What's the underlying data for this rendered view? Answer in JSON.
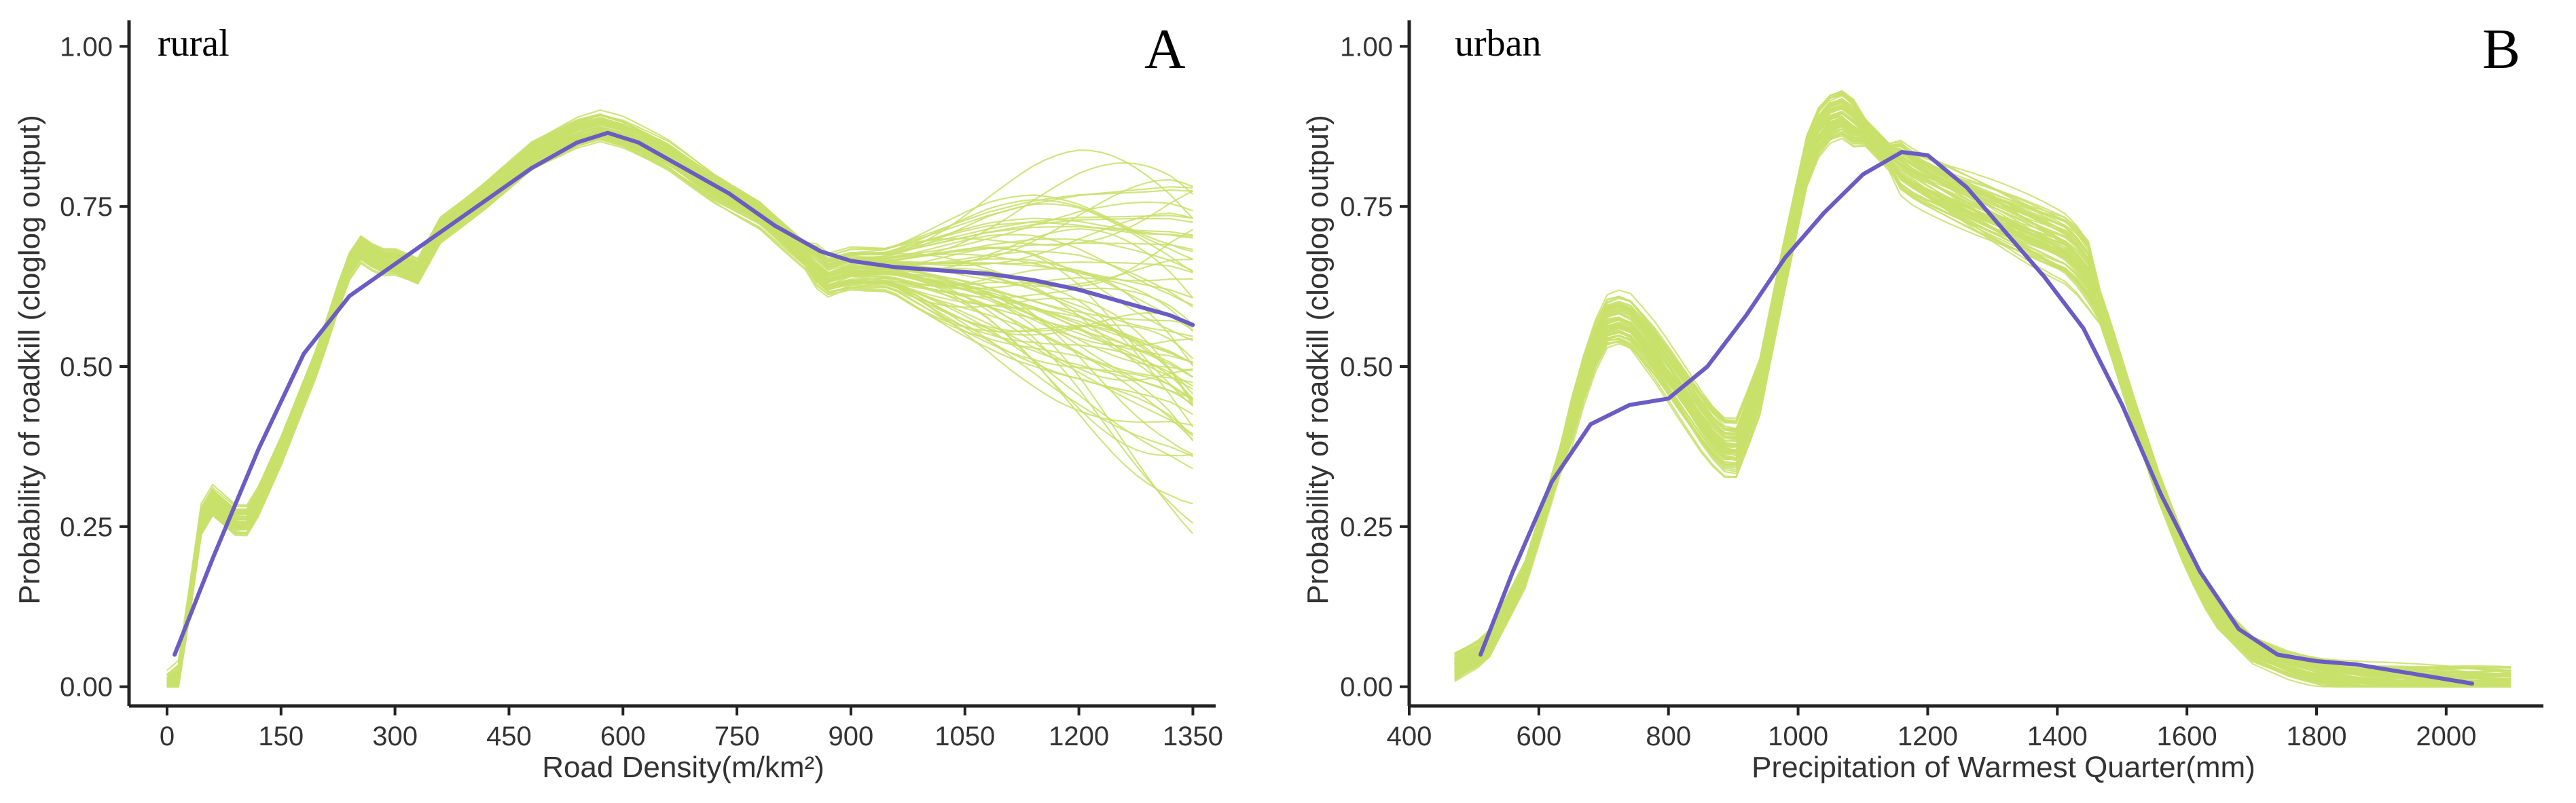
{
  "chart_data": [
    {
      "type": "line",
      "panel_label": "A",
      "subtitle": "rural",
      "xlabel": "Road Density(m/km²)",
      "ylabel": "Probability of roadkill (cloglog output)",
      "xlim": [
        -50,
        1380
      ],
      "ylim": [
        -0.03,
        1.03
      ],
      "x_ticks": [
        "0",
        "150",
        "300",
        "450",
        "600",
        "750",
        "900",
        "1050",
        "1200",
        "1350"
      ],
      "y_ticks": [
        "0.00",
        "0.25",
        "0.50",
        "0.75",
        "1.00"
      ],
      "colors": {
        "replicates": "#c8e06a",
        "mean": "#6a5cc4"
      },
      "series": [
        {
          "name": "mean response",
          "x": [
            10,
            60,
            120,
            180,
            240,
            300,
            360,
            420,
            480,
            540,
            580,
            620,
            680,
            740,
            800,
            860,
            900,
            960,
            1020,
            1080,
            1140,
            1200,
            1260,
            1320,
            1350
          ],
          "y": [
            0.05,
            0.2,
            0.37,
            0.52,
            0.61,
            0.66,
            0.71,
            0.76,
            0.81,
            0.85,
            0.865,
            0.85,
            0.81,
            0.77,
            0.72,
            0.68,
            0.665,
            0.655,
            0.65,
            0.645,
            0.635,
            0.62,
            0.6,
            0.58,
            0.565
          ]
        },
        {
          "name": "replicate template",
          "x": [
            0,
            20,
            40,
            60,
            80,
            100,
            120,
            150,
            180,
            200,
            230,
            250,
            280,
            300,
            330,
            360,
            420,
            480,
            540,
            570,
            600,
            660,
            720,
            780,
            840,
            870,
            900,
            960,
            1020,
            1080,
            1140,
            1200,
            1260,
            1320,
            1350
          ],
          "y": [
            0.0,
            0.02,
            0.25,
            0.29,
            0.27,
            0.25,
            0.29,
            0.37,
            0.46,
            0.52,
            0.63,
            0.69,
            0.665,
            0.665,
            0.65,
            0.715,
            0.77,
            0.83,
            0.865,
            0.875,
            0.865,
            0.83,
            0.78,
            0.74,
            0.675,
            0.645,
            0.655,
            0.655,
            0.65,
            0.645,
            0.635,
            0.62,
            0.6,
            0.58,
            0.565
          ]
        }
      ]
    },
    {
      "type": "line",
      "panel_label": "B",
      "subtitle": "urban",
      "xlabel": "Precipitation of Warmest Quarter(mm)",
      "ylabel": "Probability of roadkill (cloglog output)",
      "xlim": [
        400,
        2150
      ],
      "ylim": [
        -0.03,
        1.03
      ],
      "x_ticks": [
        "400",
        "600",
        "800",
        "1000",
        "1200",
        "1400",
        "1600",
        "1800",
        "2000"
      ],
      "y_ticks": [
        "0.00",
        "0.25",
        "0.50",
        "0.75",
        "1.00"
      ],
      "colors": {
        "replicates": "#c8e06a",
        "mean": "#6a5cc4"
      },
      "series": [
        {
          "name": "mean response",
          "x": [
            510,
            560,
            620,
            680,
            740,
            800,
            860,
            920,
            980,
            1040,
            1100,
            1160,
            1200,
            1260,
            1320,
            1380,
            1440,
            1500,
            1560,
            1620,
            1680,
            1740,
            1800,
            1860,
            1920,
            1980,
            2040
          ],
          "y": [
            0.05,
            0.18,
            0.32,
            0.41,
            0.44,
            0.45,
            0.5,
            0.58,
            0.67,
            0.74,
            0.8,
            0.835,
            0.83,
            0.78,
            0.71,
            0.64,
            0.56,
            0.44,
            0.3,
            0.18,
            0.09,
            0.05,
            0.04,
            0.035,
            0.025,
            0.015,
            0.005
          ]
        },
        {
          "name": "replicate template",
          "x": [
            470,
            520,
            580,
            640,
            680,
            710,
            740,
            780,
            820,
            860,
            900,
            940,
            980,
            1020,
            1060,
            1100,
            1140,
            1180,
            1220,
            1260,
            1300,
            1340,
            1380,
            1420,
            1450,
            1480,
            1520,
            1560,
            1600,
            1640,
            1700,
            1760,
            1820,
            1880,
            1940,
            2000,
            2060,
            2100
          ],
          "y": [
            0.03,
            0.06,
            0.18,
            0.38,
            0.52,
            0.58,
            0.57,
            0.52,
            0.46,
            0.4,
            0.36,
            0.46,
            0.66,
            0.85,
            0.9,
            0.87,
            0.83,
            0.8,
            0.78,
            0.76,
            0.74,
            0.72,
            0.7,
            0.68,
            0.64,
            0.55,
            0.42,
            0.3,
            0.2,
            0.12,
            0.06,
            0.035,
            0.02,
            0.012,
            0.008,
            0.006,
            0.005,
            0.005
          ]
        }
      ]
    }
  ]
}
